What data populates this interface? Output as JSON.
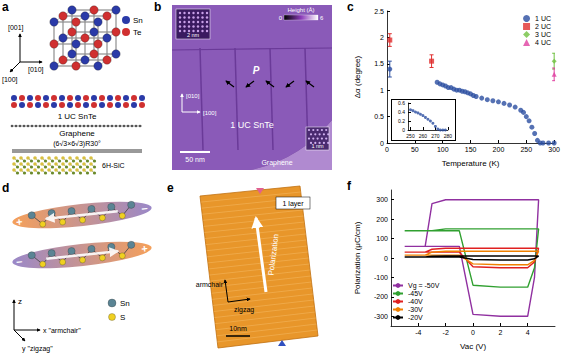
{
  "chart_data": [
    {
      "type": "scatter",
      "xlabel": "Temperature (K)",
      "ylabel": "Δα (degree)",
      "xlim": [
        0,
        300
      ],
      "xticks": [
        0,
        50,
        100,
        150,
        200,
        250,
        300
      ],
      "ylim": [
        0,
        2.5
      ],
      "yticks": [
        0,
        0.5,
        1,
        1.5,
        2,
        2.5
      ],
      "grid": false,
      "legend": "upper right",
      "series": [
        {
          "name": "1 UC",
          "color": "#2a4ea0",
          "marker": "circle",
          "x": [
            5,
            90,
            95,
            100,
            105,
            110,
            115,
            120,
            125,
            130,
            135,
            140,
            145,
            150,
            155,
            160,
            170,
            180,
            190,
            200,
            210,
            220,
            230,
            240,
            245,
            250,
            255,
            260,
            265,
            270,
            275,
            280,
            290,
            300
          ],
          "values": [
            1.4,
            1.15,
            1.12,
            1.1,
            1.08,
            1.05,
            1.05,
            1.02,
            1.0,
            1.0,
            0.98,
            0.97,
            0.95,
            0.93,
            0.9,
            0.88,
            0.85,
            0.82,
            0.8,
            0.78,
            0.75,
            0.72,
            0.68,
            0.62,
            0.58,
            0.5,
            0.42,
            0.3,
            0.18,
            0.05,
            0.0,
            0.0,
            0.0,
            0.0
          ],
          "errors": [
            0.15,
            null,
            null,
            null,
            null,
            null,
            null,
            null,
            null,
            null,
            null,
            null,
            null,
            null,
            null,
            null,
            null,
            null,
            null,
            null,
            null,
            null,
            null,
            null,
            null,
            null,
            null,
            null,
            null,
            null,
            null,
            null,
            null,
            null
          ]
        },
        {
          "name": "2 UC",
          "color": "#e03030",
          "marker": "square",
          "x": [
            5,
            80
          ],
          "values": [
            1.95,
            1.55
          ],
          "errors": [
            0.12,
            0.12
          ]
        },
        {
          "name": "3 UC",
          "color": "#70c040",
          "marker": "diamond",
          "x": [
            300
          ],
          "values": [
            1.55
          ],
          "errors": [
            0.15
          ]
        },
        {
          "name": "4 UC",
          "color": "#e040a0",
          "marker": "triangle",
          "x": [
            300
          ],
          "values": [
            1.3
          ],
          "errors": [
            0.12
          ]
        }
      ]
    },
    {
      "type": "scatter",
      "xlim": [
        248,
        280
      ],
      "xticks": [
        250,
        260,
        270,
        280
      ],
      "ylim": [
        0,
        0.6
      ],
      "yticks": [
        0,
        0.2,
        0.4,
        0.6
      ],
      "grid": false,
      "series": [
        {
          "color": "#2a4ea0",
          "marker": "circle",
          "x": [
            250,
            252,
            254,
            256,
            258,
            260,
            262,
            264,
            266,
            268,
            270,
            272,
            274,
            276,
            278
          ],
          "values": [
            0.45,
            0.43,
            0.4,
            0.38,
            0.35,
            0.32,
            0.28,
            0.24,
            0.2,
            0.15,
            0.08,
            0.02,
            0,
            0,
            0
          ]
        }
      ]
    },
    {
      "type": "line",
      "xlabel": "Vac (V)",
      "ylabel": "Polarization (μC/cm)",
      "xlim": [
        -6,
        6
      ],
      "xticks": [
        -4,
        -2,
        0,
        2,
        4
      ],
      "ylim": [
        -350,
        350
      ],
      "yticks": [
        -300,
        -200,
        -100,
        0,
        100,
        200,
        300
      ],
      "grid": false,
      "legend": "lower left",
      "series": [
        {
          "name": "Vg = -50V",
          "color": "#9030a0",
          "line_style": "solid",
          "x": [
            -5,
            -1,
            0,
            2,
            4,
            4.5,
            4.8,
            3,
            0,
            -2,
            -3,
            -3.5,
            -5
          ],
          "values": [
            60,
            60,
            -290,
            -300,
            -300,
            -100,
            300,
            300,
            300,
            300,
            280,
            60,
            60
          ]
        },
        {
          "name": "-45V",
          "color": "#30a030",
          "line_style": "solid",
          "x": [
            -5,
            -1,
            0,
            2,
            4,
            4.5,
            4.8,
            3,
            0,
            -2,
            -3,
            -3.5,
            -5
          ],
          "values": [
            140,
            140,
            -140,
            -150,
            -150,
            -50,
            150,
            150,
            150,
            150,
            140,
            140,
            140
          ]
        },
        {
          "name": "-40V",
          "color": "#e02020",
          "line_style": "solid",
          "x": [
            -5,
            -1,
            0,
            2,
            4,
            4.5,
            4.8,
            3,
            0,
            -2,
            -3,
            -3.5,
            -5
          ],
          "values": [
            30,
            30,
            -45,
            -50,
            -50,
            -20,
            50,
            50,
            50,
            50,
            45,
            30,
            30
          ]
        },
        {
          "name": "-30V",
          "color": "#f08000",
          "line_style": "solid",
          "x": [
            -5,
            -1,
            0,
            2,
            4,
            4.5,
            4.8,
            3,
            0,
            -2,
            -3,
            -3.5,
            -5
          ],
          "values": [
            15,
            15,
            -30,
            -35,
            -35,
            -12,
            35,
            35,
            35,
            35,
            30,
            15,
            15
          ]
        },
        {
          "name": "-20V",
          "color": "#000000",
          "line_style": "solid",
          "x": [
            -5,
            -1,
            0,
            2,
            4,
            4.5,
            4.8,
            3,
            0,
            -2,
            -3,
            -3.5,
            -5
          ],
          "values": [
            5,
            5,
            -8,
            -10,
            -10,
            -4,
            10,
            10,
            10,
            10,
            9,
            5,
            5
          ]
        }
      ]
    }
  ],
  "figure": {
    "panel_labels": [
      "a",
      "b",
      "c",
      "d",
      "e",
      "f"
    ],
    "a": {
      "axes": [
        "[001]",
        "[100]",
        "[010]"
      ],
      "atoms": [
        {
          "name": "Sn",
          "color": "#2a3aa8"
        },
        {
          "name": "Te",
          "color": "#d03030"
        }
      ],
      "layers": [
        "1 UC SnTe",
        "Graphene",
        "(6√3×6√3)R30°",
        "6H-SiC"
      ]
    },
    "b": {
      "labels": {
        "film": "1 UC SnTe",
        "substrate": "Graphene",
        "polarization": "P",
        "scale": "50 nm",
        "inset_scale_top": "2 nm",
        "inset_scale_bottom": "1 nm",
        "dir_y": "[010]",
        "dir_x": "[100]"
      },
      "colorbar": {
        "title": "Height (Å)",
        "min": 0,
        "max": 6
      }
    },
    "d": {
      "atoms": [
        {
          "name": "Sn",
          "color": "#5a8494"
        },
        {
          "name": "S",
          "color": "#f0d020"
        }
      ],
      "axes": {
        "z": "z",
        "x": "x \"armchair\"",
        "y": "y \"zigzag\""
      },
      "charges": [
        "+",
        "−"
      ]
    },
    "e": {
      "labels": {
        "layer": "1 layer",
        "polarization": "Polarization",
        "armchair": "armchair",
        "zigzag": "zigzag",
        "scale": "10nm"
      }
    }
  }
}
